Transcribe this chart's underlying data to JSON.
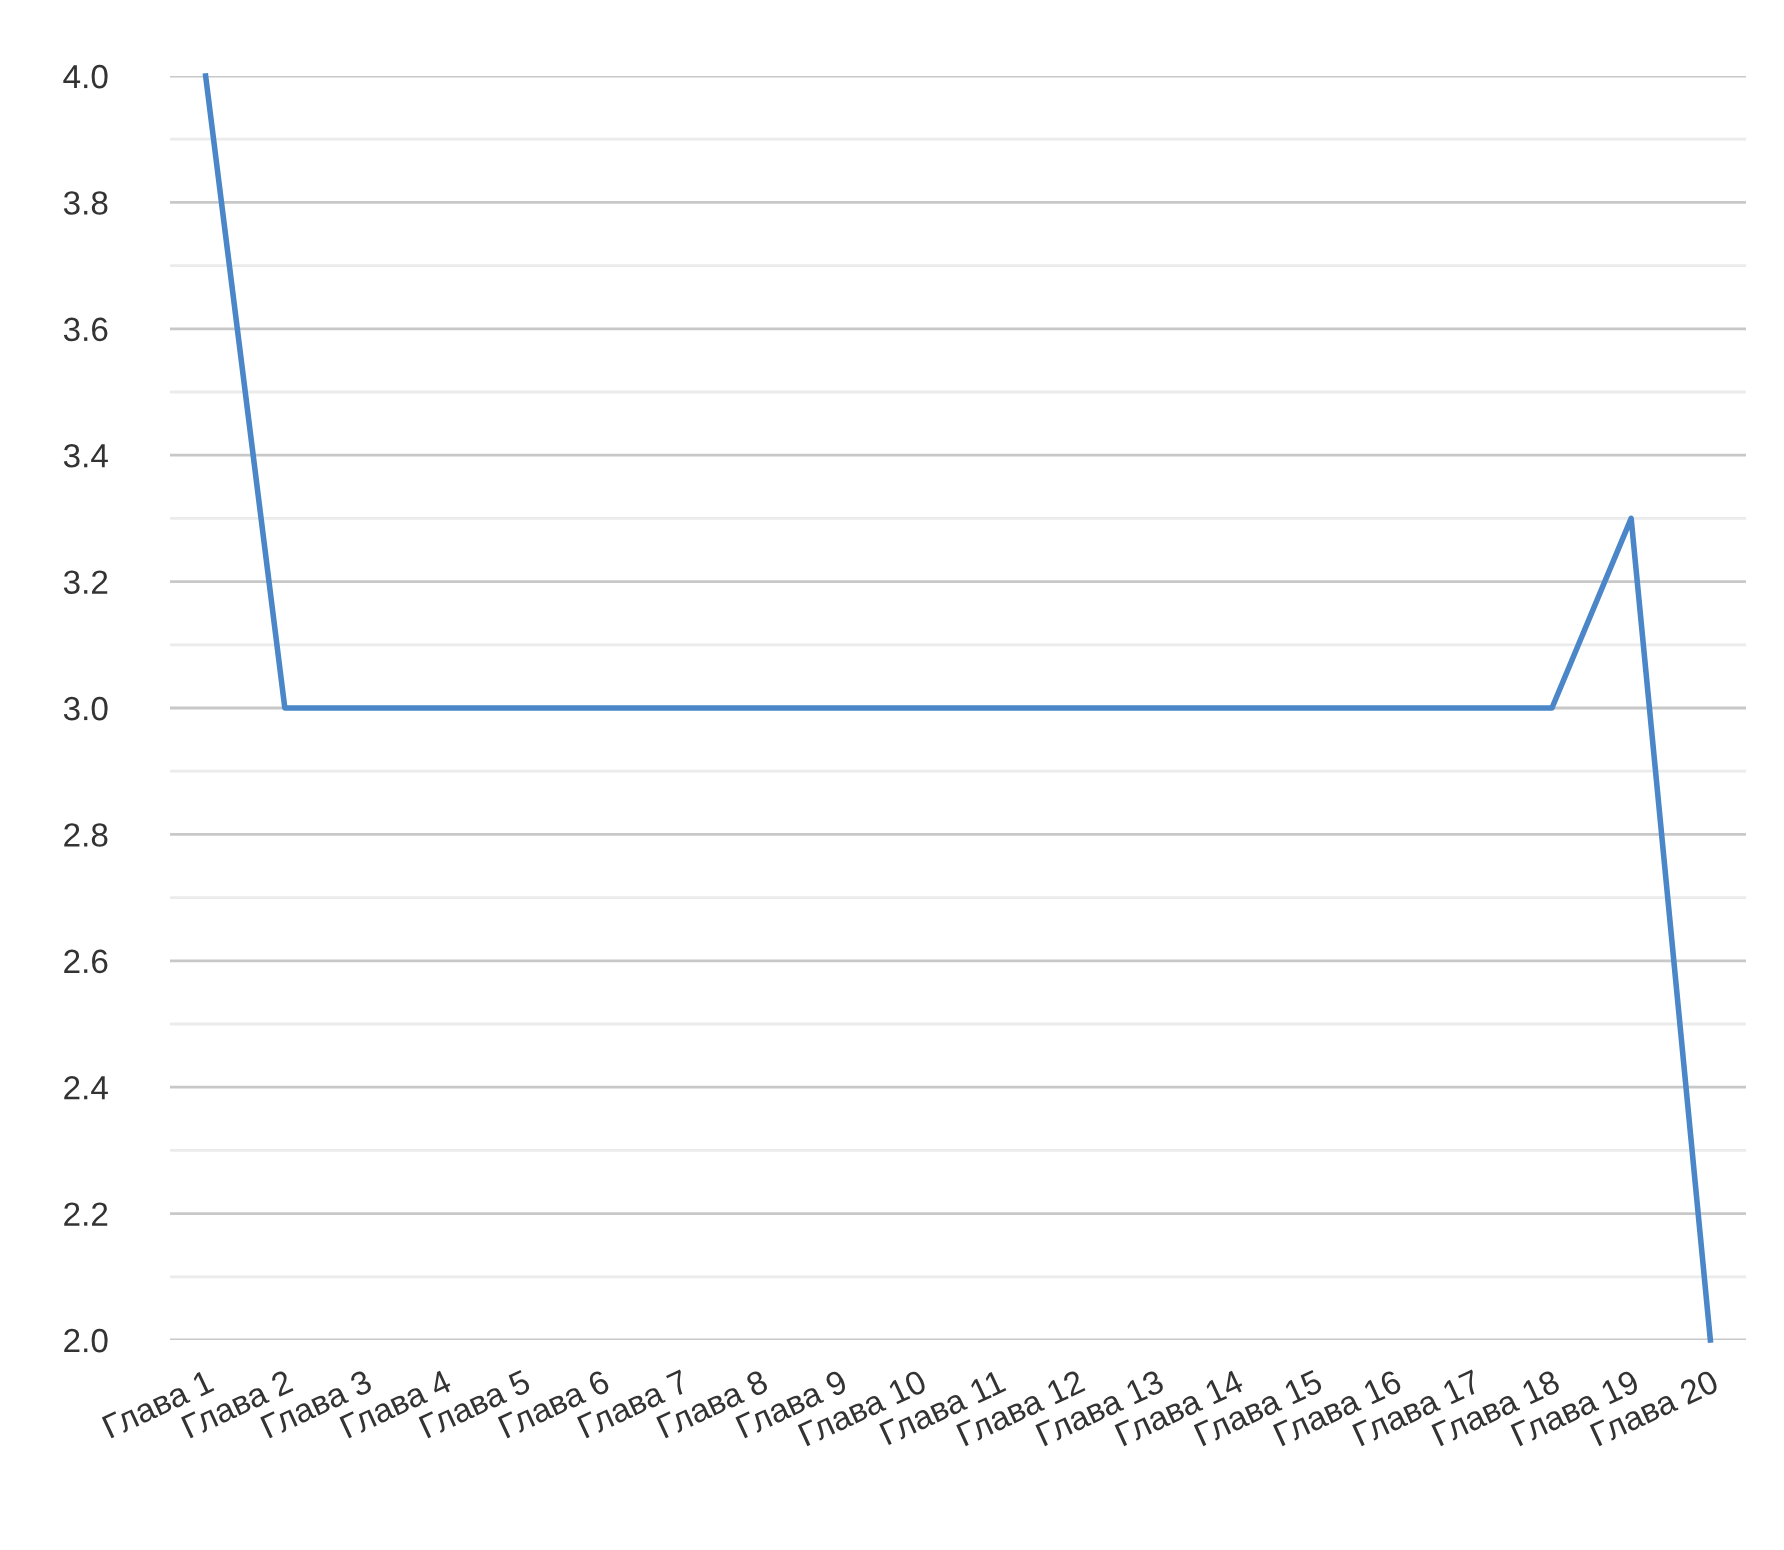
{
  "chart_data": {
    "type": "line",
    "categories": [
      "Глава 1",
      "Глава 2",
      "Глава 3",
      "Глава 4",
      "Глава 5",
      "Глава 6",
      "Глава 7",
      "Глава 8",
      "Глава 9",
      "Глава 10",
      "Глава 11",
      "Глава 12",
      "Глава 13",
      "Глава 14",
      "Глава 15",
      "Глава 16",
      "Глава 17",
      "Глава 18",
      "Глава 19",
      "Глава 20"
    ],
    "series": [
      {
        "color": "#4a86c8",
        "values": [
          4.0,
          3.0,
          3.0,
          3.0,
          3.0,
          3.0,
          3.0,
          3.0,
          3.0,
          3.0,
          3.0,
          3.0,
          3.0,
          3.0,
          3.0,
          3.0,
          3.0,
          3.0,
          3.3,
          2.0
        ]
      }
    ],
    "ylim": [
      2.0,
      4.0
    ],
    "yticks": [
      {
        "value": 2.0,
        "label": "2.0"
      },
      {
        "value": 2.1,
        "label": null
      },
      {
        "value": 2.2,
        "label": "2.2"
      },
      {
        "value": 2.3,
        "label": null
      },
      {
        "value": 2.4,
        "label": "2.4"
      },
      {
        "value": 2.5,
        "label": null
      },
      {
        "value": 2.6,
        "label": "2.6"
      },
      {
        "value": 2.7,
        "label": null
      },
      {
        "value": 2.8,
        "label": "2.8"
      },
      {
        "value": 2.9,
        "label": null
      },
      {
        "value": 3.0,
        "label": "3.0"
      },
      {
        "value": 3.1,
        "label": null
      },
      {
        "value": 3.2,
        "label": "3.2"
      },
      {
        "value": 3.3,
        "label": null
      },
      {
        "value": 3.4,
        "label": "3.4"
      },
      {
        "value": 3.5,
        "label": null
      },
      {
        "value": 3.6,
        "label": "3.6"
      },
      {
        "value": 3.7,
        "label": null
      },
      {
        "value": 3.8,
        "label": "3.8"
      },
      {
        "value": 3.9,
        "label": null
      },
      {
        "value": 4.0,
        "label": "4.0"
      }
    ],
    "grid": "y",
    "marker": "none",
    "line_style": "solid",
    "legend": false
  }
}
